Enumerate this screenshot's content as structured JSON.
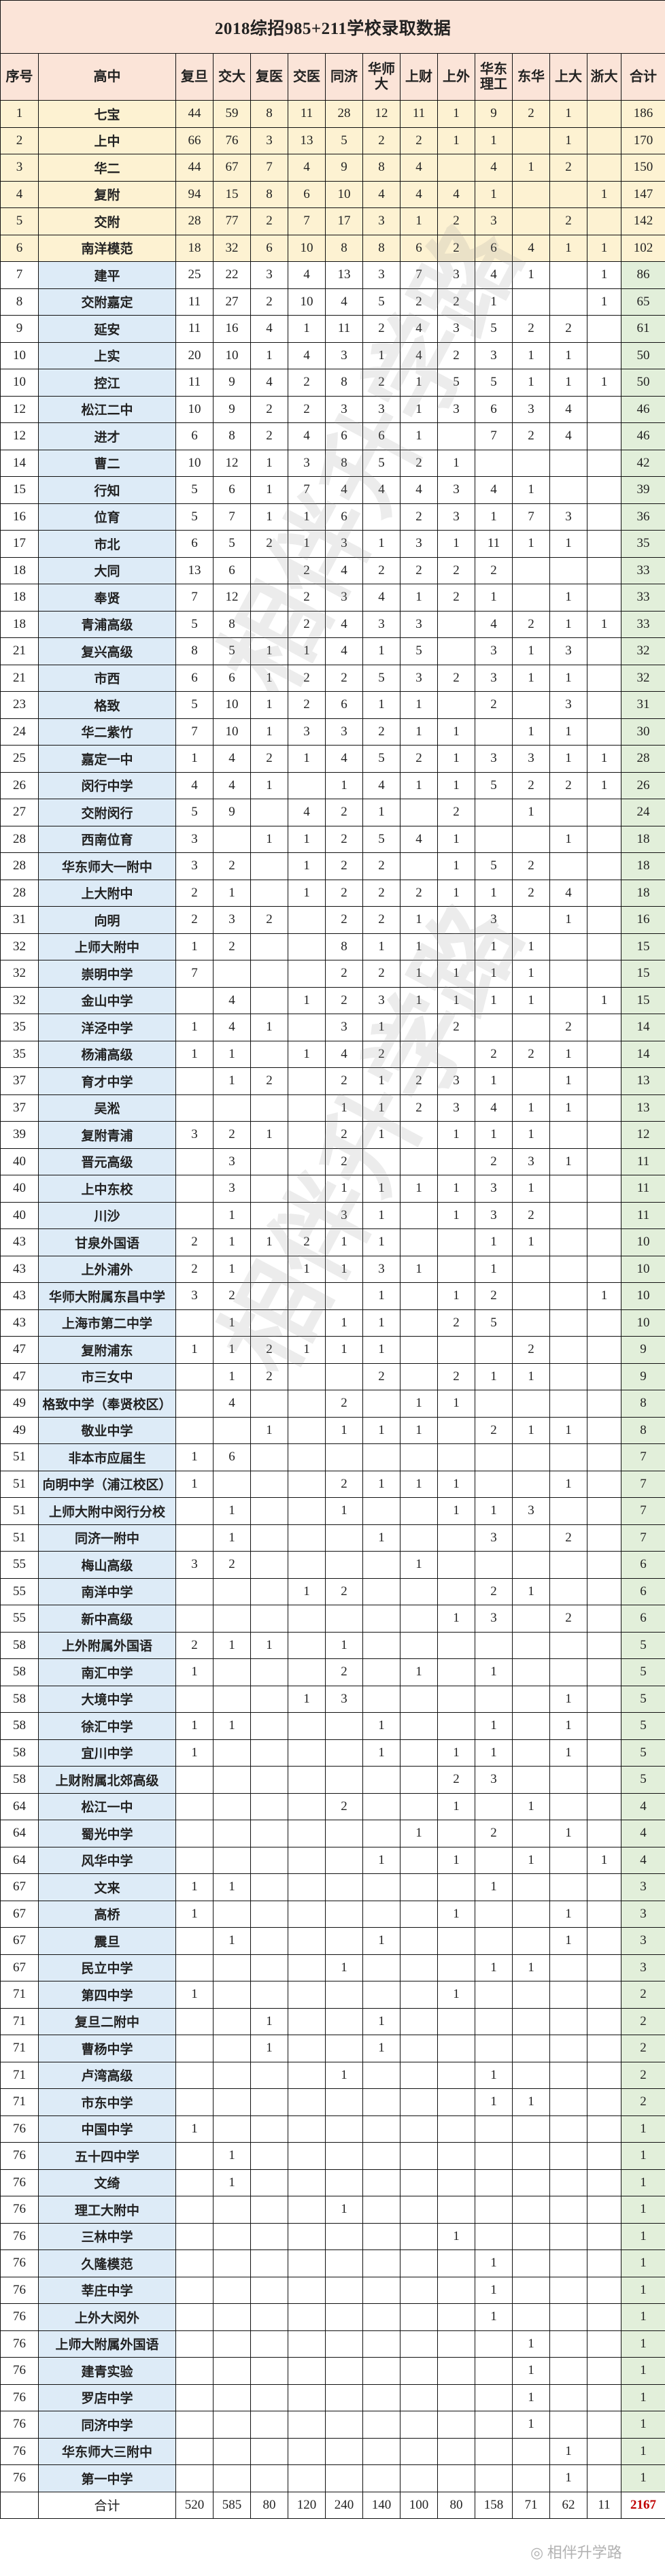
{
  "title": "2018综招985+211学校录取数据",
  "headers": [
    "序号",
    "高中",
    "复旦",
    "交大",
    "复医",
    "交医",
    "同济",
    "华师大",
    "上财",
    "上外",
    "华东理工",
    "东华",
    "上大",
    "浙大",
    "合计"
  ],
  "rows": [
    [
      "1",
      "七宝",
      "44",
      "59",
      "8",
      "11",
      "28",
      "12",
      "11",
      "1",
      "9",
      "2",
      "1",
      "",
      "186"
    ],
    [
      "2",
      "上中",
      "66",
      "76",
      "3",
      "13",
      "5",
      "2",
      "2",
      "1",
      "1",
      "",
      "1",
      "",
      "170"
    ],
    [
      "3",
      "华二",
      "44",
      "67",
      "7",
      "4",
      "9",
      "8",
      "4",
      "",
      "4",
      "1",
      "2",
      "",
      "150"
    ],
    [
      "4",
      "复附",
      "94",
      "15",
      "8",
      "6",
      "10",
      "4",
      "4",
      "4",
      "1",
      "",
      "",
      "1",
      "147"
    ],
    [
      "5",
      "交附",
      "28",
      "77",
      "2",
      "7",
      "17",
      "3",
      "1",
      "2",
      "3",
      "",
      "2",
      "",
      "142"
    ],
    [
      "6",
      "南洋模范",
      "18",
      "32",
      "6",
      "10",
      "8",
      "8",
      "6",
      "2",
      "6",
      "4",
      "1",
      "1",
      "102"
    ],
    [
      "7",
      "建平",
      "25",
      "22",
      "3",
      "4",
      "13",
      "3",
      "7",
      "3",
      "4",
      "1",
      "",
      "1",
      "86"
    ],
    [
      "8",
      "交附嘉定",
      "11",
      "27",
      "2",
      "10",
      "4",
      "5",
      "2",
      "2",
      "1",
      "",
      "",
      "1",
      "65"
    ],
    [
      "9",
      "延安",
      "11",
      "16",
      "4",
      "1",
      "11",
      "2",
      "4",
      "3",
      "5",
      "2",
      "2",
      "",
      "61"
    ],
    [
      "10",
      "上实",
      "20",
      "10",
      "1",
      "4",
      "3",
      "1",
      "4",
      "2",
      "3",
      "1",
      "1",
      "",
      "50"
    ],
    [
      "10",
      "控江",
      "11",
      "9",
      "4",
      "2",
      "8",
      "2",
      "1",
      "5",
      "5",
      "1",
      "1",
      "1",
      "50"
    ],
    [
      "12",
      "松江二中",
      "10",
      "9",
      "2",
      "2",
      "3",
      "3",
      "1",
      "3",
      "6",
      "3",
      "4",
      "",
      "46"
    ],
    [
      "12",
      "进才",
      "6",
      "8",
      "2",
      "4",
      "6",
      "6",
      "1",
      "",
      "7",
      "2",
      "4",
      "",
      "46"
    ],
    [
      "14",
      "曹二",
      "10",
      "12",
      "1",
      "3",
      "8",
      "5",
      "2",
      "1",
      "",
      "",
      "",
      "",
      "42"
    ],
    [
      "15",
      "行知",
      "5",
      "6",
      "1",
      "7",
      "4",
      "4",
      "4",
      "3",
      "4",
      "1",
      "",
      "",
      "39"
    ],
    [
      "16",
      "位育",
      "5",
      "7",
      "1",
      "1",
      "6",
      "",
      "2",
      "3",
      "1",
      "7",
      "3",
      "",
      "36"
    ],
    [
      "17",
      "市北",
      "6",
      "5",
      "2",
      "1",
      "3",
      "1",
      "3",
      "1",
      "11",
      "1",
      "1",
      "",
      "35"
    ],
    [
      "18",
      "大同",
      "13",
      "6",
      "",
      "2",
      "4",
      "2",
      "2",
      "2",
      "2",
      "",
      "",
      "",
      "33"
    ],
    [
      "18",
      "奉贤",
      "7",
      "12",
      "",
      "2",
      "3",
      "4",
      "1",
      "2",
      "1",
      "",
      "1",
      "",
      "33"
    ],
    [
      "18",
      "青浦高级",
      "5",
      "8",
      "",
      "2",
      "4",
      "3",
      "3",
      "",
      "4",
      "2",
      "1",
      "1",
      "33"
    ],
    [
      "21",
      "复兴高级",
      "8",
      "5",
      "1",
      "1",
      "4",
      "1",
      "5",
      "",
      "3",
      "1",
      "3",
      "",
      "32"
    ],
    [
      "21",
      "市西",
      "6",
      "6",
      "1",
      "2",
      "2",
      "5",
      "3",
      "2",
      "3",
      "1",
      "1",
      "",
      "32"
    ],
    [
      "23",
      "格致",
      "5",
      "10",
      "1",
      "2",
      "6",
      "1",
      "1",
      "",
      "2",
      "",
      "3",
      "",
      "31"
    ],
    [
      "24",
      "华二紫竹",
      "7",
      "10",
      "1",
      "3",
      "3",
      "2",
      "1",
      "1",
      "",
      "1",
      "1",
      "",
      "30"
    ],
    [
      "25",
      "嘉定一中",
      "1",
      "4",
      "2",
      "1",
      "4",
      "5",
      "2",
      "1",
      "3",
      "3",
      "1",
      "1",
      "28"
    ],
    [
      "26",
      "闵行中学",
      "4",
      "4",
      "1",
      "",
      "1",
      "4",
      "1",
      "1",
      "5",
      "2",
      "2",
      "1",
      "26"
    ],
    [
      "27",
      "交附闵行",
      "5",
      "9",
      "",
      "4",
      "2",
      "1",
      "",
      "2",
      "",
      "1",
      "",
      "",
      "24"
    ],
    [
      "28",
      "西南位育",
      "3",
      "",
      "1",
      "1",
      "2",
      "5",
      "4",
      "1",
      "",
      "",
      "1",
      "",
      "18"
    ],
    [
      "28",
      "华东师大一附中",
      "3",
      "2",
      "",
      "1",
      "2",
      "2",
      "",
      "1",
      "5",
      "2",
      "",
      "",
      "18"
    ],
    [
      "28",
      "上大附中",
      "2",
      "1",
      "",
      "1",
      "2",
      "2",
      "2",
      "1",
      "1",
      "2",
      "4",
      "",
      "18"
    ],
    [
      "31",
      "向明",
      "2",
      "3",
      "2",
      "",
      "2",
      "2",
      "1",
      "",
      "3",
      "",
      "1",
      "",
      "16"
    ],
    [
      "32",
      "上师大附中",
      "1",
      "2",
      "",
      "",
      "8",
      "1",
      "1",
      "",
      "1",
      "1",
      "",
      "",
      "15"
    ],
    [
      "32",
      "崇明中学",
      "7",
      "",
      "",
      "",
      "2",
      "2",
      "1",
      "1",
      "1",
      "1",
      "",
      "",
      "15"
    ],
    [
      "32",
      "金山中学",
      "",
      "4",
      "",
      "1",
      "2",
      "3",
      "1",
      "1",
      "1",
      "1",
      "",
      "1",
      "15"
    ],
    [
      "35",
      "洋泾中学",
      "1",
      "4",
      "1",
      "",
      "3",
      "1",
      "",
      "2",
      "",
      "",
      "2",
      "",
      "14"
    ],
    [
      "35",
      "杨浦高级",
      "1",
      "1",
      "",
      "1",
      "4",
      "2",
      "",
      "",
      "2",
      "2",
      "1",
      "",
      "14"
    ],
    [
      "37",
      "育才中学",
      "",
      "1",
      "2",
      "",
      "2",
      "1",
      "2",
      "3",
      "1",
      "",
      "1",
      "",
      "13"
    ],
    [
      "37",
      "吴淞",
      "",
      "",
      "",
      "",
      "1",
      "1",
      "2",
      "3",
      "4",
      "1",
      "1",
      "",
      "13"
    ],
    [
      "39",
      "复附青浦",
      "3",
      "2",
      "1",
      "",
      "2",
      "1",
      "",
      "1",
      "1",
      "1",
      "",
      "",
      "12"
    ],
    [
      "40",
      "晋元高级",
      "",
      "3",
      "",
      "",
      "2",
      "",
      "",
      "",
      "2",
      "3",
      "1",
      "",
      "11"
    ],
    [
      "40",
      "上中东校",
      "",
      "3",
      "",
      "",
      "1",
      "1",
      "1",
      "1",
      "3",
      "1",
      "",
      "",
      "11"
    ],
    [
      "40",
      "川沙",
      "",
      "1",
      "",
      "",
      "3",
      "1",
      "",
      "1",
      "3",
      "2",
      "",
      "",
      "11"
    ],
    [
      "43",
      "甘泉外国语",
      "2",
      "1",
      "1",
      "2",
      "1",
      "1",
      "",
      "",
      "1",
      "1",
      "",
      "",
      "10"
    ],
    [
      "43",
      "上外浦外",
      "2",
      "1",
      "",
      "1",
      "1",
      "3",
      "1",
      "",
      "1",
      "",
      "",
      "",
      "10"
    ],
    [
      "43",
      "华师大附属东昌中学",
      "3",
      "2",
      "",
      "",
      "",
      "1",
      "",
      "1",
      "2",
      "",
      "",
      "1",
      "10"
    ],
    [
      "43",
      "上海市第二中学",
      "",
      "1",
      "",
      "",
      "1",
      "1",
      "",
      "2",
      "5",
      "",
      "",
      "",
      "10"
    ],
    [
      "47",
      "复附浦东",
      "1",
      "1",
      "2",
      "1",
      "1",
      "1",
      "",
      "",
      "",
      "2",
      "",
      "",
      "9"
    ],
    [
      "47",
      "市三女中",
      "",
      "1",
      "2",
      "",
      "",
      "2",
      "",
      "2",
      "1",
      "1",
      "",
      "",
      "9"
    ],
    [
      "49",
      "格致中学（奉贤校区）",
      "",
      "4",
      "",
      "",
      "2",
      "",
      "1",
      "1",
      "",
      "",
      "",
      "",
      "8"
    ],
    [
      "49",
      "敬业中学",
      "",
      "",
      "1",
      "",
      "1",
      "1",
      "1",
      "",
      "2",
      "1",
      "1",
      "",
      "8"
    ],
    [
      "51",
      "非本市应届生",
      "1",
      "6",
      "",
      "",
      "",
      "",
      "",
      "",
      "",
      "",
      "",
      "",
      "7"
    ],
    [
      "51",
      "向明中学（浦江校区）",
      "1",
      "",
      "",
      "",
      "2",
      "1",
      "1",
      "1",
      "",
      "",
      "1",
      "",
      "7"
    ],
    [
      "51",
      "上师大附中闵行分校",
      "",
      "1",
      "",
      "",
      "1",
      "",
      "",
      "1",
      "1",
      "3",
      "",
      "",
      "7"
    ],
    [
      "51",
      "同济一附中",
      "",
      "1",
      "",
      "",
      "",
      "1",
      "",
      "",
      "3",
      "",
      "2",
      "",
      "7"
    ],
    [
      "55",
      "梅山高级",
      "3",
      "2",
      "",
      "",
      "",
      "",
      "1",
      "",
      "",
      "",
      "",
      "",
      "6"
    ],
    [
      "55",
      "南洋中学",
      "",
      "",
      "",
      "1",
      "2",
      "",
      "",
      "",
      "2",
      "1",
      "",
      "",
      "6"
    ],
    [
      "55",
      "新中高级",
      "",
      "",
      "",
      "",
      "",
      "",
      "",
      "1",
      "3",
      "",
      "2",
      "",
      "6"
    ],
    [
      "58",
      "上外附属外国语",
      "2",
      "1",
      "1",
      "",
      "1",
      "",
      "",
      "",
      "",
      "",
      "",
      "",
      "5"
    ],
    [
      "58",
      "南汇中学",
      "1",
      "",
      "",
      "",
      "2",
      "",
      "1",
      "",
      "1",
      "",
      "",
      "",
      "5"
    ],
    [
      "58",
      "大境中学",
      "",
      "",
      "",
      "1",
      "3",
      "",
      "",
      "",
      "",
      "",
      "1",
      "",
      "5"
    ],
    [
      "58",
      "徐汇中学",
      "1",
      "1",
      "",
      "",
      "",
      "1",
      "",
      "",
      "1",
      "",
      "1",
      "",
      "5"
    ],
    [
      "58",
      "宜川中学",
      "1",
      "",
      "",
      "",
      "",
      "1",
      "",
      "1",
      "1",
      "",
      "1",
      "",
      "5"
    ],
    [
      "58",
      "上财附属北郊高级",
      "",
      "",
      "",
      "",
      "",
      "",
      "",
      "2",
      "3",
      "",
      "",
      "",
      "5"
    ],
    [
      "64",
      "松江一中",
      "",
      "",
      "",
      "",
      "2",
      "",
      "",
      "1",
      "",
      "1",
      "",
      "",
      "4"
    ],
    [
      "64",
      "蜀光中学",
      "",
      "",
      "",
      "",
      "",
      "",
      "1",
      "",
      "2",
      "",
      "1",
      "",
      "4"
    ],
    [
      "64",
      "风华中学",
      "",
      "",
      "",
      "",
      "",
      "1",
      "",
      "1",
      "",
      "1",
      "",
      "1",
      "4"
    ],
    [
      "67",
      "文来",
      "1",
      "1",
      "",
      "",
      "",
      "",
      "",
      "",
      "1",
      "",
      "",
      "",
      "3"
    ],
    [
      "67",
      "高桥",
      "1",
      "",
      "",
      "",
      "",
      "",
      "",
      "1",
      "",
      "",
      "1",
      "",
      "3"
    ],
    [
      "67",
      "震旦",
      "",
      "1",
      "",
      "",
      "",
      "1",
      "",
      "",
      "",
      "",
      "1",
      "",
      "3"
    ],
    [
      "67",
      "民立中学",
      "",
      "",
      "",
      "",
      "1",
      "",
      "",
      "",
      "1",
      "1",
      "",
      "",
      "3"
    ],
    [
      "71",
      "第四中学",
      "1",
      "",
      "",
      "",
      "",
      "",
      "",
      "1",
      "",
      "",
      "",
      "",
      "2"
    ],
    [
      "71",
      "复旦二附中",
      "",
      "",
      "1",
      "",
      "",
      "1",
      "",
      "",
      "",
      "",
      "",
      "",
      "2"
    ],
    [
      "71",
      "曹杨中学",
      "",
      "",
      "1",
      "",
      "",
      "1",
      "",
      "",
      "",
      "",
      "",
      "",
      "2"
    ],
    [
      "71",
      "卢湾高级",
      "",
      "",
      "",
      "",
      "1",
      "",
      "",
      "",
      "1",
      "",
      "",
      "",
      "2"
    ],
    [
      "71",
      "市东中学",
      "",
      "",
      "",
      "",
      "",
      "",
      "",
      "",
      "1",
      "1",
      "",
      "",
      "2"
    ],
    [
      "76",
      "中国中学",
      "1",
      "",
      "",
      "",
      "",
      "",
      "",
      "",
      "",
      "",
      "",
      "",
      "1"
    ],
    [
      "76",
      "五十四中学",
      "",
      "1",
      "",
      "",
      "",
      "",
      "",
      "",
      "",
      "",
      "",
      "",
      "1"
    ],
    [
      "76",
      "文绮",
      "",
      "1",
      "",
      "",
      "",
      "",
      "",
      "",
      "",
      "",
      "",
      "",
      "1"
    ],
    [
      "76",
      "理工大附中",
      "",
      "",
      "",
      "",
      "1",
      "",
      "",
      "",
      "",
      "",
      "",
      "",
      "1"
    ],
    [
      "76",
      "三林中学",
      "",
      "",
      "",
      "",
      "",
      "",
      "",
      "1",
      "",
      "",
      "",
      "",
      "1"
    ],
    [
      "76",
      "久隆模范",
      "",
      "",
      "",
      "",
      "",
      "",
      "",
      "",
      "1",
      "",
      "",
      "",
      "1"
    ],
    [
      "76",
      "莘庄中学",
      "",
      "",
      "",
      "",
      "",
      "",
      "",
      "",
      "1",
      "",
      "",
      "",
      "1"
    ],
    [
      "76",
      "上外大闵外",
      "",
      "",
      "",
      "",
      "",
      "",
      "",
      "",
      "1",
      "",
      "",
      "",
      "1"
    ],
    [
      "76",
      "上师大附属外国语",
      "",
      "",
      "",
      "",
      "",
      "",
      "",
      "",
      "",
      "1",
      "",
      "",
      "1"
    ],
    [
      "76",
      "建青实验",
      "",
      "",
      "",
      "",
      "",
      "",
      "",
      "",
      "",
      "1",
      "",
      "",
      "1"
    ],
    [
      "76",
      "罗店中学",
      "",
      "",
      "",
      "",
      "",
      "",
      "",
      "",
      "",
      "1",
      "",
      "",
      "1"
    ],
    [
      "76",
      "同济中学",
      "",
      "",
      "",
      "",
      "",
      "",
      "",
      "",
      "",
      "1",
      "",
      "",
      "1"
    ],
    [
      "76",
      "华东师大三附中",
      "",
      "",
      "",
      "",
      "",
      "",
      "",
      "",
      "",
      "",
      "1",
      "",
      "1"
    ],
    [
      "76",
      "第一中学",
      "",
      "",
      "",
      "",
      "",
      "",
      "",
      "",
      "",
      "",
      "1",
      "",
      "1"
    ]
  ],
  "totals": {
    "label": "合计",
    "values": [
      "520",
      "585",
      "80",
      "120",
      "240",
      "140",
      "100",
      "80",
      "158",
      "71",
      "62",
      "11"
    ],
    "grand": "2167"
  },
  "watermark": "相伴升学路",
  "logo": "相伴升学路",
  "colors": {
    "header": "#fbe4d8",
    "top6": "#fdf2d2",
    "name_col": "#ddebf7",
    "total_col": "#e2efda",
    "grand_total": "#c00000"
  }
}
